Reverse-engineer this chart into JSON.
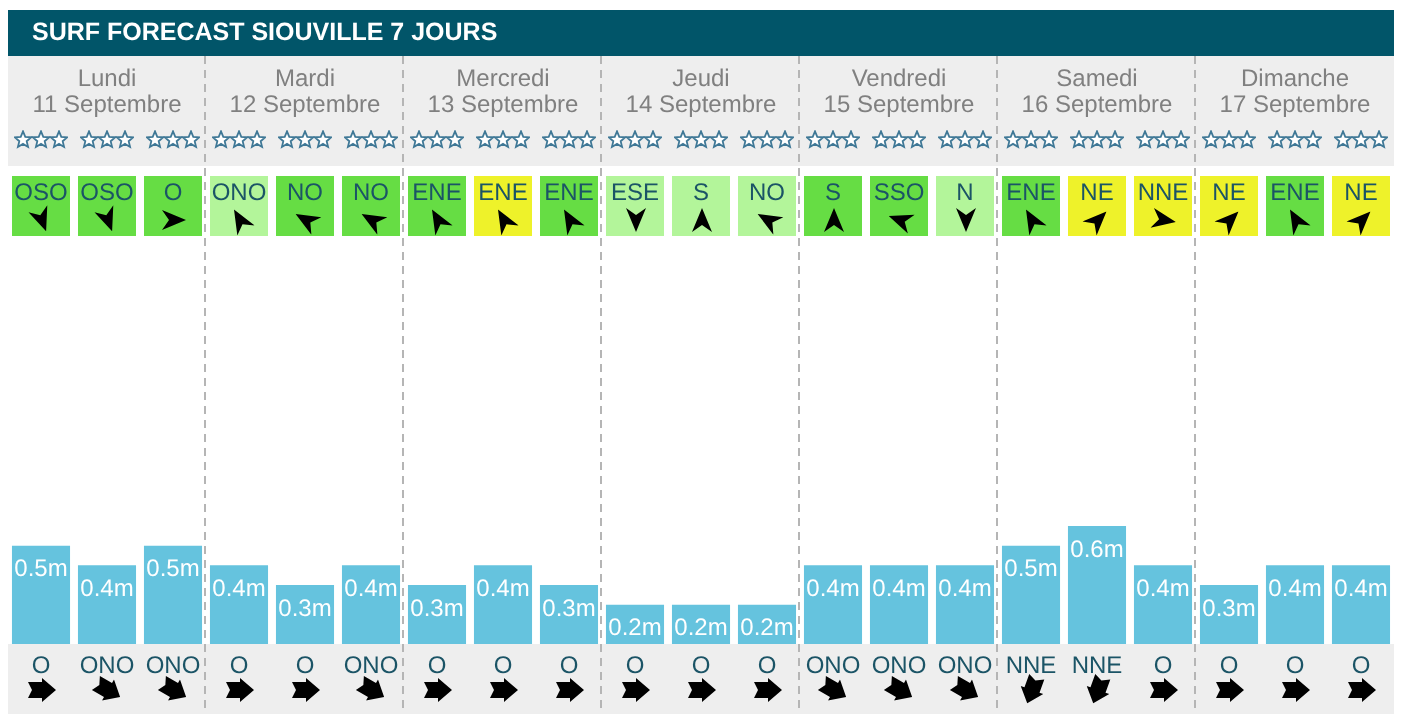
{
  "chart_data": {
    "type": "bar",
    "title": "SURF FORECAST SIOUVILLE 7 JOURS",
    "categories": [
      "O",
      "ONO",
      "ONO",
      "O",
      "O",
      "ONO",
      "O",
      "O",
      "O",
      "O",
      "O",
      "O",
      "ONO",
      "ONO",
      "ONO",
      "NNE",
      "NNE",
      "O",
      "O",
      "O",
      "O"
    ],
    "values": [
      0.5,
      0.4,
      0.5,
      0.4,
      0.3,
      0.4,
      0.3,
      0.4,
      0.3,
      0.2,
      0.2,
      0.2,
      0.4,
      0.4,
      0.4,
      0.5,
      0.6,
      0.4,
      0.3,
      0.4,
      0.4
    ],
    "value_labels": [
      "0.5m",
      "0.4m",
      "0.5m",
      "0.4m",
      "0.3m",
      "0.4m",
      "0.3m",
      "0.4m",
      "0.3m",
      "0.2m",
      "0.2m",
      "0.2m",
      "0.4m",
      "0.4m",
      "0.4m",
      "0.5m",
      "0.6m",
      "0.4m",
      "0.3m",
      "0.4m",
      "0.4m"
    ],
    "color": "#65c3de",
    "annotations": [
      "Lundi",
      "11 Septembre",
      "Mardi",
      "12 Septembre",
      "Mercredi",
      "13 Septembre",
      "Jeudi",
      "14 Septembre",
      "Vendredi",
      "15 Septembre",
      "Samedi",
      "16 Septembre",
      "Dimanche",
      "17 Septembre",
      "OSO",
      "OSO",
      "O",
      "ONO",
      "NO",
      "NO",
      "ENE",
      "ENE",
      "ENE",
      "ESE",
      "S",
      "NO",
      "S",
      "SSO",
      "N",
      "ENE",
      "NE",
      "NNE",
      "NE",
      "ENE",
      "NE"
    ]
  }
}
